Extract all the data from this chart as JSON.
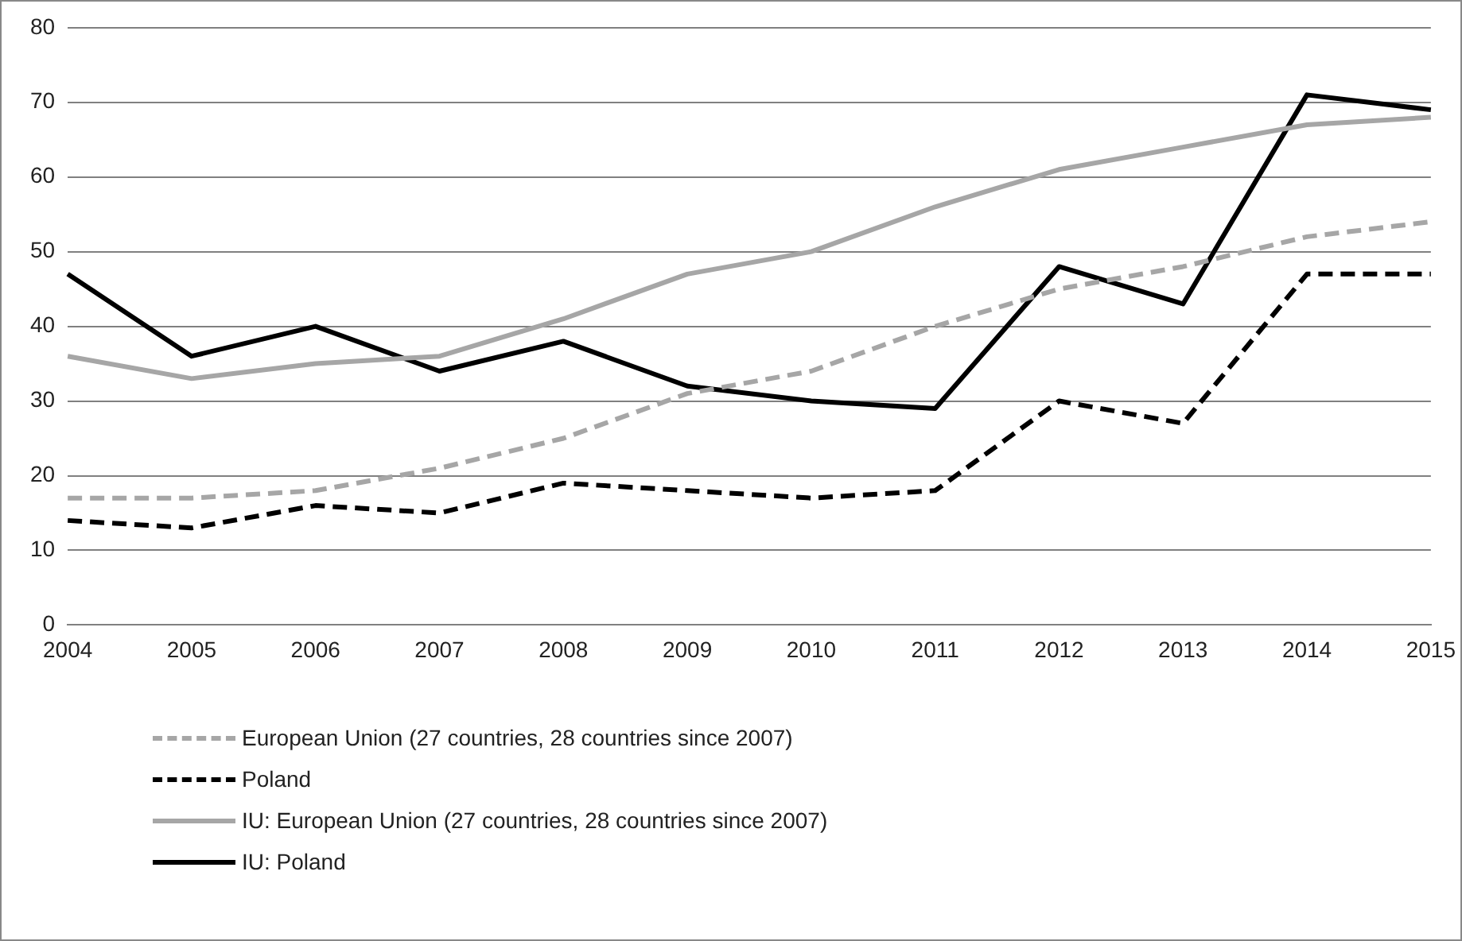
{
  "chart_data": {
    "type": "line",
    "categories": [
      "2004",
      "2005",
      "2006",
      "2007",
      "2008",
      "2009",
      "2010",
      "2011",
      "2012",
      "2013",
      "2014",
      "2015"
    ],
    "series": [
      {
        "name": "European Union (27 countries, 28 countries since 2007)",
        "color": "#a6a6a6",
        "line_style": "dashed",
        "values": [
          17,
          17,
          18,
          21,
          25,
          31,
          34,
          40,
          45,
          48,
          52,
          54
        ]
      },
      {
        "name": "Poland",
        "color": "#000000",
        "line_style": "dashed",
        "values": [
          14,
          13,
          16,
          15,
          19,
          18,
          17,
          18,
          30,
          27,
          47,
          47
        ]
      },
      {
        "name": "IU: European Union (27 countries, 28 countries since 2007)",
        "color": "#a6a6a6",
        "line_style": "solid",
        "values": [
          36,
          33,
          35,
          36,
          41,
          47,
          50,
          56,
          61,
          64,
          67,
          68
        ]
      },
      {
        "name": "IU: Poland",
        "color": "#000000",
        "line_style": "solid",
        "values": [
          47,
          36,
          40,
          34,
          38,
          32,
          30,
          29,
          48,
          43,
          71,
          69
        ]
      }
    ],
    "ylim": [
      0,
      80
    ],
    "yticks": [
      0,
      10,
      20,
      30,
      40,
      50,
      60,
      70,
      80
    ],
    "grid": "y",
    "legend": "bottom",
    "marker": "none"
  }
}
